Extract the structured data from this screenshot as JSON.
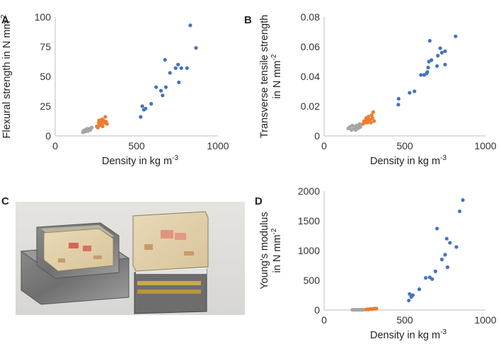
{
  "panels": {
    "A": "A",
    "B": "B",
    "C": "C",
    "D": "D"
  },
  "colors": {
    "blue": "#4472C4",
    "orange": "#ED7D31",
    "gray": "#A5A5A5"
  },
  "photo": {
    "icon": "photo-of-foam-samples-on-metal-plates",
    "label_text": "CB B"
  },
  "chart_data": [
    {
      "id": "A",
      "type": "scatter",
      "title": "",
      "xlabel": "Density in kg m",
      "xlabel_sup": "-3",
      "ylabel": "Flexural strength in N mm",
      "ylabel_sup": "-2",
      "xlim": [
        0,
        1000
      ],
      "ylim": [
        0,
        100
      ],
      "xticks": [
        "0",
        "500",
        "1000"
      ],
      "yticks": [
        "0",
        "25",
        "50",
        "75",
        "100"
      ],
      "series": [
        {
          "color": "gray",
          "points": [
            [
              170,
              3
            ],
            [
              175,
              4.5
            ],
            [
              180,
              3.5
            ],
            [
              185,
              5
            ],
            [
              190,
              4
            ],
            [
              195,
              6
            ],
            [
              200,
              4
            ],
            [
              205,
              5
            ],
            [
              210,
              6
            ],
            [
              215,
              5
            ],
            [
              220,
              6.5
            ],
            [
              225,
              7
            ],
            [
              185,
              4.8
            ],
            [
              200,
              5.5
            ]
          ]
        },
        {
          "color": "orange",
          "points": [
            [
              255,
              8
            ],
            [
              262,
              7
            ],
            [
              268,
              11
            ],
            [
              272,
              9
            ],
            [
              278,
              12
            ],
            [
              282,
              10
            ],
            [
              288,
              14
            ],
            [
              292,
              8
            ],
            [
              296,
              13
            ],
            [
              302,
              11
            ],
            [
              308,
              16
            ],
            [
              312,
              12
            ],
            [
              318,
              10
            ],
            [
              270,
              13
            ],
            [
              285,
              9
            ]
          ]
        },
        {
          "color": "blue",
          "points": [
            [
              525,
              16
            ],
            [
              535,
              25
            ],
            [
              545,
              22
            ],
            [
              555,
              23
            ],
            [
              590,
              27
            ],
            [
              620,
              41
            ],
            [
              650,
              38
            ],
            [
              660,
              34
            ],
            [
              675,
              64
            ],
            [
              680,
              41
            ],
            [
              705,
              53
            ],
            [
              740,
              57
            ],
            [
              755,
              60
            ],
            [
              760,
              45
            ],
            [
              775,
              57
            ],
            [
              810,
              57
            ],
            [
              830,
              93
            ],
            [
              865,
              74
            ]
          ]
        }
      ]
    },
    {
      "id": "B",
      "type": "scatter",
      "title": "",
      "xlabel": "Density in kg m",
      "xlabel_sup": "-3",
      "ylabel": "Transverse tensile strength",
      "ylabel2": "in N mm",
      "ylabel_sup": "-2",
      "xlim": [
        0,
        1000
      ],
      "ylim": [
        0,
        0.08
      ],
      "xticks": [
        "0",
        "500",
        "1000"
      ],
      "yticks": [
        "0",
        "0.02",
        "0.04",
        "0.06",
        "0.08"
      ],
      "series": [
        {
          "color": "gray",
          "points": [
            [
              150,
              0.005
            ],
            [
              160,
              0.006
            ],
            [
              170,
              0.004
            ],
            [
              175,
              0.007
            ],
            [
              185,
              0.005
            ],
            [
              190,
              0.006
            ],
            [
              195,
              0.004
            ],
            [
              200,
              0.007
            ],
            [
              210,
              0.005
            ],
            [
              215,
              0.006
            ],
            [
              220,
              0.008
            ],
            [
              225,
              0.006
            ]
          ]
        },
        {
          "color": "orange",
          "points": [
            [
              240,
              0.008
            ],
            [
              248,
              0.01
            ],
            [
              255,
              0.009
            ],
            [
              260,
              0.012
            ],
            [
              265,
              0.011
            ],
            [
              270,
              0.009
            ],
            [
              275,
              0.013
            ],
            [
              280,
              0.01
            ],
            [
              285,
              0.011
            ],
            [
              290,
              0.009
            ],
            [
              295,
              0.014
            ],
            [
              300,
              0.012
            ],
            [
              305,
              0.016
            ],
            [
              310,
              0.01
            ]
          ]
        },
        {
          "color": "blue",
          "points": [
            [
              460,
              0.021
            ],
            [
              462,
              0.025
            ],
            [
              530,
              0.029
            ],
            [
              560,
              0.03
            ],
            [
              600,
              0.041
            ],
            [
              620,
              0.041
            ],
            [
              635,
              0.042
            ],
            [
              640,
              0.043
            ],
            [
              645,
              0.046
            ],
            [
              650,
              0.05
            ],
            [
              655,
              0.064
            ],
            [
              665,
              0.051
            ],
            [
              700,
              0.047
            ],
            [
              705,
              0.054
            ],
            [
              720,
              0.059
            ],
            [
              730,
              0.056
            ],
            [
              750,
              0.057
            ],
            [
              750,
              0.048
            ],
            [
              815,
              0.067
            ]
          ]
        }
      ]
    },
    {
      "id": "D",
      "type": "scatter",
      "title": "",
      "xlabel": "Density in kg m",
      "xlabel_sup": "-3",
      "ylabel": "Young's modulus",
      "ylabel2": "in N mm",
      "ylabel_sup": "-2",
      "xlim": [
        0,
        1000
      ],
      "ylim": [
        0,
        2000
      ],
      "xticks": [
        "0",
        "500",
        "1000"
      ],
      "yticks": [
        "0",
        "500",
        "1000",
        "1500",
        "2000"
      ],
      "series": [
        {
          "color": "gray",
          "points": [
            [
              175,
              4
            ],
            [
              182,
              5
            ],
            [
              190,
              4
            ],
            [
              198,
              5
            ],
            [
              205,
              4
            ],
            [
              212,
              5
            ],
            [
              220,
              4
            ],
            [
              228,
              5
            ],
            [
              236,
              4
            ],
            [
              243,
              5
            ]
          ]
        },
        {
          "color": "orange",
          "points": [
            [
              260,
              8
            ],
            [
              268,
              12
            ],
            [
              276,
              10
            ],
            [
              284,
              15
            ],
            [
              292,
              18
            ],
            [
              300,
              14
            ],
            [
              308,
              22
            ],
            [
              316,
              20
            ],
            [
              324,
              25
            ]
          ]
        },
        {
          "color": "blue",
          "points": [
            [
              525,
              160
            ],
            [
              530,
              270
            ],
            [
              540,
              220
            ],
            [
              550,
              250
            ],
            [
              590,
              350
            ],
            [
              630,
              540
            ],
            [
              655,
              550
            ],
            [
              670,
              520
            ],
            [
              690,
              650
            ],
            [
              700,
              1370
            ],
            [
              730,
              850
            ],
            [
              750,
              930
            ],
            [
              760,
              1200
            ],
            [
              765,
              720
            ],
            [
              780,
              1130
            ],
            [
              820,
              1060
            ],
            [
              840,
              1660
            ],
            [
              860,
              1850
            ]
          ]
        }
      ]
    }
  ]
}
